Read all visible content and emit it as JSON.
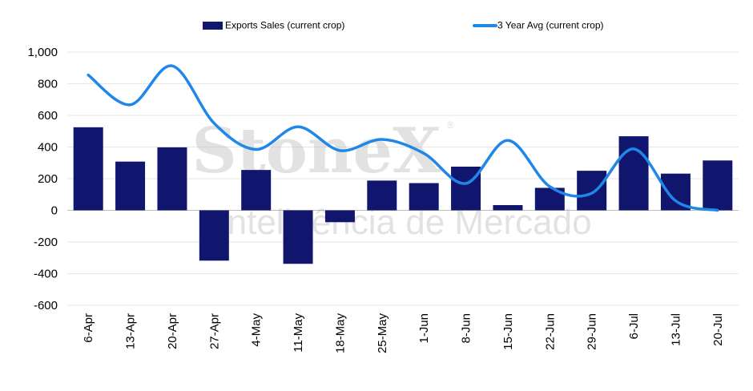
{
  "chart_data": {
    "type": "bar",
    "categories": [
      "6-Apr",
      "13-Apr",
      "20-Apr",
      "27-Apr",
      "4-May",
      "11-May",
      "18-May",
      "25-May",
      "1-Jun",
      "8-Jun",
      "15-Jun",
      "22-Jun",
      "29-Jun",
      "6-Jul",
      "13-Jul",
      "20-Jul"
    ],
    "series": [
      {
        "name": "Exports Sales (current crop)",
        "type": "bar",
        "color": "#10166e",
        "values": [
          525,
          308,
          398,
          -318,
          255,
          -338,
          -75,
          188,
          172,
          276,
          33,
          142,
          250,
          468,
          232,
          315
        ]
      },
      {
        "name": "3 Year Avg (current crop)",
        "type": "line",
        "color": "#1f87e8",
        "values": [
          855,
          667,
          913,
          550,
          385,
          528,
          378,
          448,
          360,
          170,
          442,
          150,
          108,
          388,
          60,
          0
        ]
      }
    ],
    "ylim": [
      -600,
      1000
    ],
    "yticks": [
      "-600",
      "-400",
      "-200",
      "0",
      "200",
      "400",
      "600",
      "800",
      "1,000"
    ],
    "grid": true,
    "legend_position": "top"
  },
  "watermark": {
    "brand": "StoneX",
    "registered": "®",
    "tagline": "Inteligência de Mercado"
  }
}
